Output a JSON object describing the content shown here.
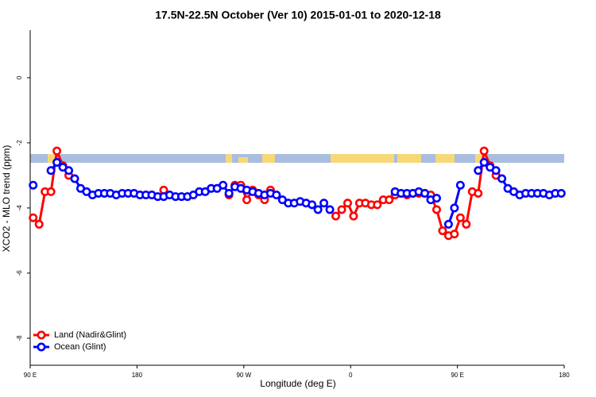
{
  "chart_data": {
    "type": "line",
    "title": "17.5N-22.5N October (Ver 10)   2015-01-01 to 2020-12-18",
    "x_label": "Longitude (deg E)",
    "y_label": "XCO2 - MLO trend (ppm)",
    "xlim": [
      90,
      540
    ],
    "ylim": [
      -8.83,
      1.46
    ],
    "xticks": [
      {
        "value": 90,
        "label": "90 E"
      },
      180,
      {
        "value": 270,
        "label": "90 W"
      },
      {
        "value": 360,
        "label": "0"
      },
      {
        "value": 450,
        "label": "90 E"
      },
      {
        "value": 540,
        "label": "180"
      }
    ],
    "yticks": [
      0,
      -2,
      -4,
      -6,
      -8
    ],
    "legend": "bottom-left",
    "x": [
      92.5,
      97.5,
      102.5,
      107.5,
      112.5,
      117.5,
      122.5,
      127.5,
      132.5,
      137.5,
      142.5,
      147.5,
      152.5,
      157.5,
      162.5,
      167.5,
      172.5,
      177.5,
      182.5,
      187.5,
      192.5,
      197.5,
      202.5,
      207.5,
      212.5,
      217.5,
      222.5,
      227.5,
      232.5,
      237.5,
      242.5,
      247.5,
      252.5,
      257.5,
      262.5,
      267.5,
      272.5,
      277.5,
      282.5,
      287.5,
      292.5,
      297.5,
      302.5,
      307.5,
      312.5,
      317.5,
      322.5,
      327.5,
      332.5,
      337.5,
      342.5,
      347.5,
      352.5,
      357.5,
      362.5,
      367.5,
      372.5,
      377.5,
      382.5,
      387.5,
      392.5,
      397.5,
      402.5,
      407.5,
      412.5,
      417.5,
      422.5,
      427.5,
      432.5,
      437.5,
      442.5,
      447.5,
      452.5,
      457.5,
      462.5,
      467.5,
      472.5,
      477.5,
      482.5,
      487.5,
      492.5,
      497.5,
      502.5,
      507.5,
      512.5,
      517.5,
      522.5,
      527.5,
      532.5,
      537.5
    ],
    "series": [
      {
        "name": "Land (Nadir&Glint)",
        "color": "#ff0000",
        "values": [
          -4.3,
          -4.5,
          -3.5,
          -3.5,
          -2.25,
          -2.7,
          -3.0,
          null,
          null,
          null,
          null,
          null,
          null,
          null,
          null,
          null,
          null,
          null,
          null,
          null,
          null,
          null,
          -3.45,
          null,
          null,
          null,
          null,
          null,
          null,
          null,
          null,
          null,
          null,
          -3.6,
          -3.3,
          -3.3,
          -3.75,
          -3.45,
          -3.6,
          -3.75,
          -3.45,
          null,
          null,
          null,
          null,
          null,
          null,
          null,
          null,
          null,
          null,
          -4.25,
          -4.05,
          -3.85,
          -4.25,
          -3.85,
          -3.85,
          -3.9,
          -3.9,
          -3.75,
          -3.75,
          -3.6,
          -3.55,
          -3.6,
          -3.55,
          -3.55,
          -3.55,
          -3.6,
          -4.05,
          -4.7,
          -4.85,
          -4.8,
          -4.3,
          -4.5,
          -3.5,
          -3.55,
          -2.25,
          -2.7,
          -3.0,
          null,
          null,
          null,
          null,
          null,
          null,
          null,
          null,
          null,
          null,
          null
        ]
      },
      {
        "name": "Ocean (Glint)",
        "color": "#0000ff",
        "values": [
          -3.3,
          null,
          null,
          -2.85,
          -2.6,
          -2.75,
          -2.85,
          -3.1,
          -3.4,
          -3.5,
          -3.6,
          -3.55,
          -3.55,
          -3.55,
          -3.6,
          -3.55,
          -3.55,
          -3.55,
          -3.6,
          -3.6,
          -3.6,
          -3.65,
          -3.65,
          -3.6,
          -3.65,
          -3.65,
          -3.65,
          -3.6,
          -3.5,
          -3.5,
          -3.4,
          -3.4,
          -3.3,
          -3.55,
          -3.35,
          -3.4,
          -3.45,
          -3.5,
          -3.55,
          -3.6,
          -3.55,
          -3.6,
          -3.75,
          -3.85,
          -3.85,
          -3.8,
          -3.85,
          -3.9,
          -4.05,
          -3.85,
          -4.05,
          null,
          null,
          null,
          null,
          null,
          null,
          null,
          null,
          null,
          null,
          -3.5,
          -3.55,
          -3.55,
          -3.55,
          -3.5,
          -3.55,
          -3.75,
          -3.7,
          null,
          -4.5,
          -4.0,
          -3.3,
          null,
          null,
          -2.85,
          -2.6,
          -2.75,
          -2.85,
          -3.1,
          -3.4,
          -3.5,
          -3.6,
          -3.55,
          -3.55,
          -3.55,
          -3.55,
          -3.6,
          -3.55,
          -3.55
        ]
      }
    ]
  }
}
